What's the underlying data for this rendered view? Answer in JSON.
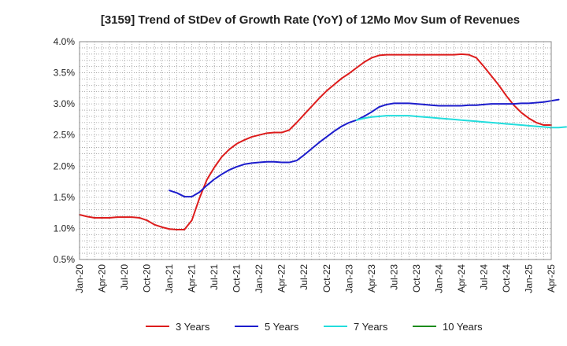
{
  "chart_data": {
    "type": "line",
    "title": "[3159]  Trend of StDev of Growth Rate (YoY) of 12Mo Mov Sum of Revenues",
    "xlabel": "",
    "ylabel": "",
    "grid": true,
    "legend_position": "bottom",
    "x_ticks": [
      "Jan-20",
      "Apr-20",
      "Jul-20",
      "Oct-20",
      "Jan-21",
      "Apr-21",
      "Jul-21",
      "Oct-21",
      "Jan-22",
      "Apr-22",
      "Jul-22",
      "Oct-22",
      "Jan-23",
      "Apr-23",
      "Jul-23",
      "Oct-23",
      "Jan-24",
      "Apr-24",
      "Jul-24",
      "Oct-24",
      "Jan-25",
      "Apr-25"
    ],
    "y_ticks": [
      "0.5%",
      "1.0%",
      "1.5%",
      "2.0%",
      "2.5%",
      "3.0%",
      "3.5%",
      "4.0%"
    ],
    "ylim": [
      0.5,
      4.0
    ],
    "x_range_months": [
      0,
      63
    ],
    "series": [
      {
        "name": "3 Years",
        "color": "#dd1c1c",
        "start_month": 0,
        "values": [
          1.22,
          1.19,
          1.17,
          1.17,
          1.17,
          1.18,
          1.18,
          1.18,
          1.17,
          1.13,
          1.06,
          1.02,
          0.99,
          0.98,
          0.98,
          1.13,
          1.48,
          1.78,
          1.98,
          2.15,
          2.27,
          2.36,
          2.42,
          2.47,
          2.5,
          2.53,
          2.54,
          2.54,
          2.58,
          2.7,
          2.83,
          2.96,
          3.09,
          3.21,
          3.31,
          3.41,
          3.49,
          3.58,
          3.67,
          3.74,
          3.78,
          3.79,
          3.79,
          3.79,
          3.79,
          3.79,
          3.79,
          3.79,
          3.79,
          3.79,
          3.79,
          3.8,
          3.79,
          3.74,
          3.6,
          3.45,
          3.3,
          3.13,
          2.98,
          2.86,
          2.77,
          2.7,
          2.66,
          2.66
        ]
      },
      {
        "name": "5 Years",
        "color": "#1c1ccc",
        "start_month": 12,
        "values": [
          1.61,
          1.57,
          1.51,
          1.51,
          1.58,
          1.69,
          1.79,
          1.87,
          1.94,
          1.99,
          2.03,
          2.05,
          2.06,
          2.07,
          2.07,
          2.06,
          2.06,
          2.09,
          2.18,
          2.28,
          2.38,
          2.47,
          2.56,
          2.64,
          2.7,
          2.74,
          2.8,
          2.87,
          2.95,
          2.99,
          3.01,
          3.01,
          3.01,
          3.0,
          2.99,
          2.98,
          2.97,
          2.97,
          2.97,
          2.97,
          2.98,
          2.98,
          2.99,
          3.0,
          3.0,
          3.0,
          3.0,
          3.01,
          3.01,
          3.02,
          3.03,
          3.05,
          3.07
        ]
      },
      {
        "name": "7 Years",
        "color": "#22dddd",
        "start_month": 37,
        "values": [
          2.74,
          2.77,
          2.79,
          2.8,
          2.81,
          2.81,
          2.81,
          2.81,
          2.8,
          2.79,
          2.78,
          2.77,
          2.76,
          2.75,
          2.74,
          2.73,
          2.72,
          2.71,
          2.7,
          2.69,
          2.68,
          2.67,
          2.66,
          2.65,
          2.64,
          2.63,
          2.62,
          2.62,
          2.63
        ]
      },
      {
        "name": "10 Years",
        "color": "#1c8c1c",
        "start_month": null,
        "values": []
      }
    ]
  }
}
